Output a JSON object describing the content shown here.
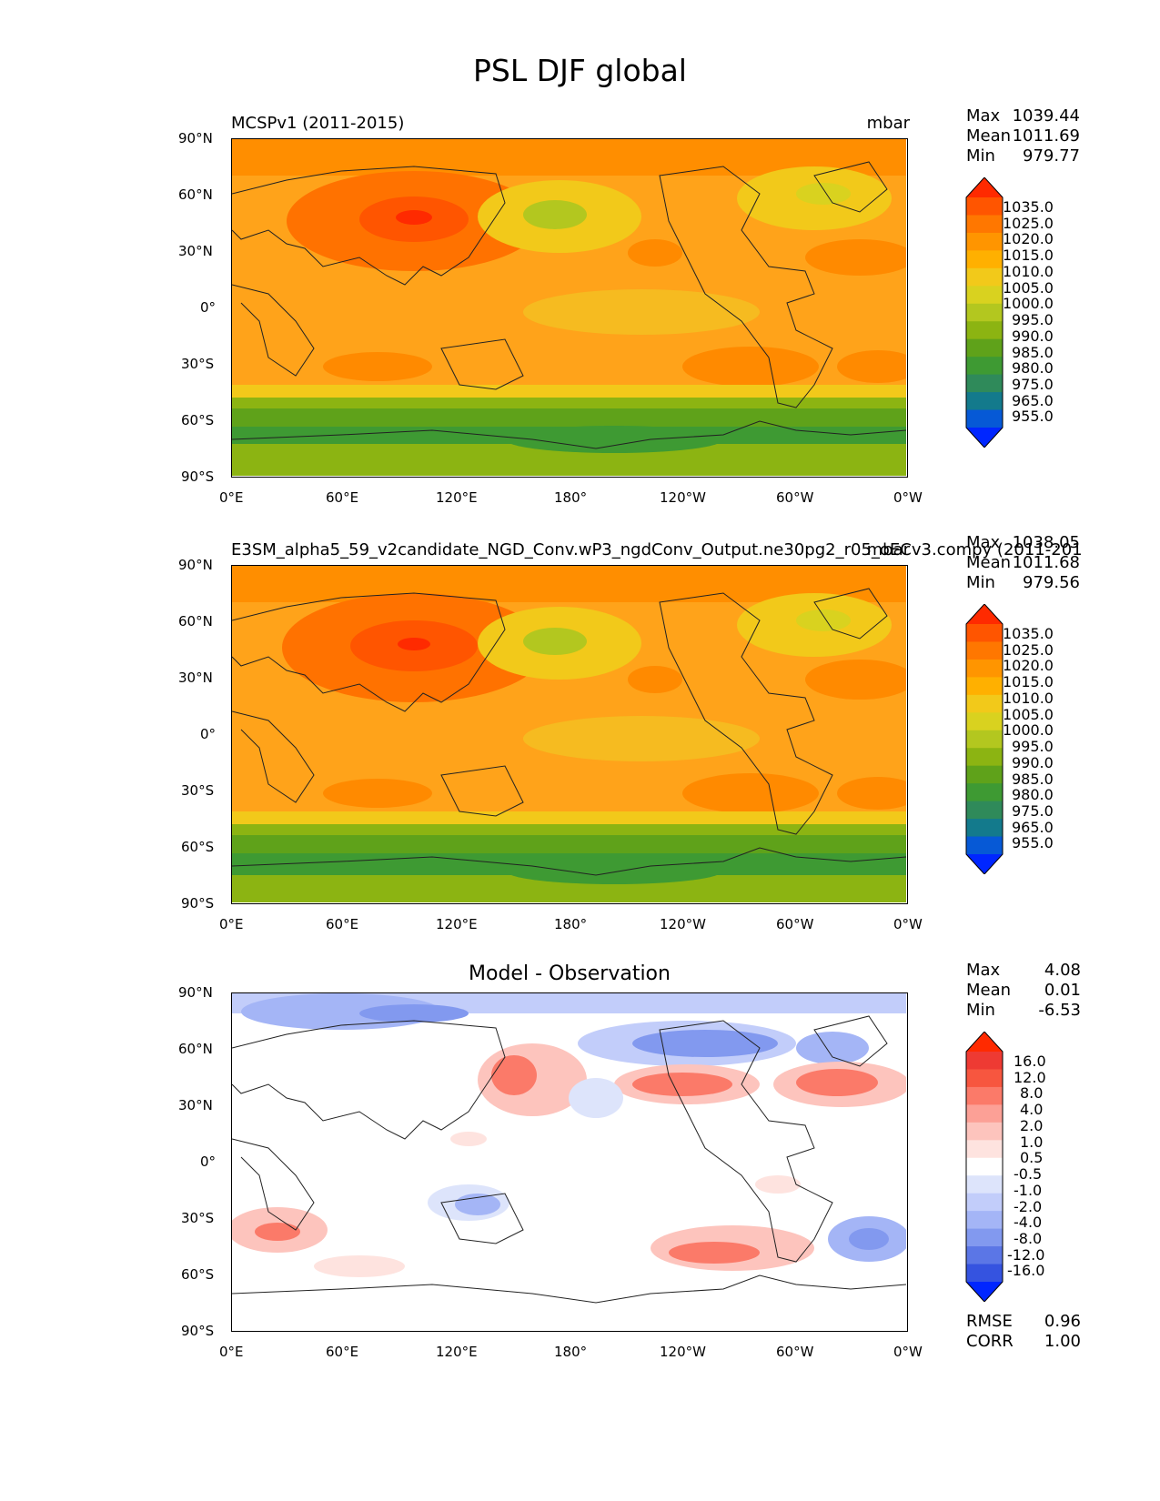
{
  "figure": {
    "title": "PSL DJF global"
  },
  "axes_ticks": {
    "lat_labels": [
      "90°N",
      "60°N",
      "30°N",
      "0°",
      "30°S",
      "60°S",
      "90°S"
    ],
    "lon_labels": [
      "0°E",
      "60°E",
      "120°E",
      "180°",
      "120°W",
      "60°W",
      "0°W"
    ]
  },
  "panels": [
    {
      "title_left": "MCSPv1 (2011-2015)",
      "title_right": "mbar",
      "title_center": "",
      "stats": [
        {
          "label": "Max",
          "value": "1039.44"
        },
        {
          "label": "Mean",
          "value": "1011.69"
        },
        {
          "label": "Min",
          "value": "979.77"
        }
      ],
      "colorbar_labels": [
        "1035.0",
        "1025.0",
        "1020.0",
        "1015.0",
        "1010.0",
        "1005.0",
        "1000.0",
        "995.0",
        "990.0",
        "985.0",
        "980.0",
        "975.0",
        "965.0",
        "955.0"
      ]
    },
    {
      "title_left": "E3SM_alpha5_59_v2candidate_NGD_Conv.wP3_ngdConv_Output.ne30pg2_r05_oECv3.compy (2011-201",
      "title_right": "mbar",
      "title_center": "",
      "stats": [
        {
          "label": "Max",
          "value": "1038.05"
        },
        {
          "label": "Mean",
          "value": "1011.68"
        },
        {
          "label": "Min",
          "value": "979.56"
        }
      ],
      "colorbar_labels": [
        "1035.0",
        "1025.0",
        "1020.0",
        "1015.0",
        "1010.0",
        "1005.0",
        "1000.0",
        "995.0",
        "990.0",
        "985.0",
        "980.0",
        "975.0",
        "965.0",
        "955.0"
      ]
    },
    {
      "title_left": "",
      "title_right": "",
      "title_center": "Model - Observation",
      "stats": [
        {
          "label": "Max",
          "value": "4.08"
        },
        {
          "label": "Mean",
          "value": "0.01"
        },
        {
          "label": "Min",
          "value": "-6.53"
        }
      ],
      "colorbar_labels": [
        "16.0",
        "12.0",
        "8.0",
        "4.0",
        "2.0",
        "1.0",
        "0.5",
        "-0.5",
        "-1.0",
        "-2.0",
        "-4.0",
        "-8.0",
        "-12.0",
        "-16.0"
      ],
      "metrics": [
        {
          "label": "RMSE",
          "value": "0.96"
        },
        {
          "label": "CORR",
          "value": "1.00"
        }
      ]
    }
  ],
  "colors": {
    "psl_levels": [
      "#ff2a00",
      "#ff5500",
      "#ff7700",
      "#ff9500",
      "#ffb000",
      "#f2c91a",
      "#d9d21f",
      "#b3c71f",
      "#8cb412",
      "#5fa21a",
      "#3e9a33",
      "#2f8a5a",
      "#137a8c",
      "#0659d6",
      "#0026ff"
    ],
    "diff_levels": [
      "#ff2a00",
      "#ee3a33",
      "#f7563f",
      "#fb7a69",
      "#fca096",
      "#fdc4bd",
      "#fee3df",
      "#ffffff",
      "#dde4fb",
      "#c2cdfa",
      "#a4b5f6",
      "#8299ef",
      "#5b76e6",
      "#3553e0",
      "#0026ff"
    ]
  },
  "chart_data": [
    {
      "type": "heatmap",
      "title": "MCSPv1 (2011-2015)",
      "units": "mbar",
      "xlim": [
        0,
        360
      ],
      "ylim": [
        -90,
        90
      ],
      "x_ticks": [
        "0°E",
        "60°E",
        "120°E",
        "180°",
        "120°W",
        "60°W",
        "0°W"
      ],
      "y_ticks": [
        "90°N",
        "60°N",
        "30°N",
        "0°",
        "30°S",
        "60°S",
        "90°S"
      ],
      "levels": [
        955,
        965,
        975,
        980,
        985,
        990,
        995,
        1000,
        1005,
        1010,
        1015,
        1020,
        1025,
        1035
      ],
      "max": 1039.44,
      "mean": 1011.69,
      "min": 979.77
    },
    {
      "type": "heatmap",
      "title": "E3SM_alpha5_59_v2candidate_NGD_Conv.wP3_ngdConv_Output.ne30pg2_r05_oECv3.compy (2011-201",
      "units": "mbar",
      "xlim": [
        0,
        360
      ],
      "ylim": [
        -90,
        90
      ],
      "levels": [
        955,
        965,
        975,
        980,
        985,
        990,
        995,
        1000,
        1005,
        1010,
        1015,
        1020,
        1025,
        1035
      ],
      "max": 1038.05,
      "mean": 1011.68,
      "min": 979.56
    },
    {
      "type": "heatmap",
      "title": "Model - Observation",
      "xlim": [
        0,
        360
      ],
      "ylim": [
        -90,
        90
      ],
      "levels": [
        -16,
        -12,
        -8,
        -4,
        -2,
        -1,
        -0.5,
        0.5,
        1,
        2,
        4,
        8,
        12,
        16
      ],
      "max": 4.08,
      "mean": 0.01,
      "min": -6.53,
      "rmse": 0.96,
      "corr": 1.0
    }
  ]
}
